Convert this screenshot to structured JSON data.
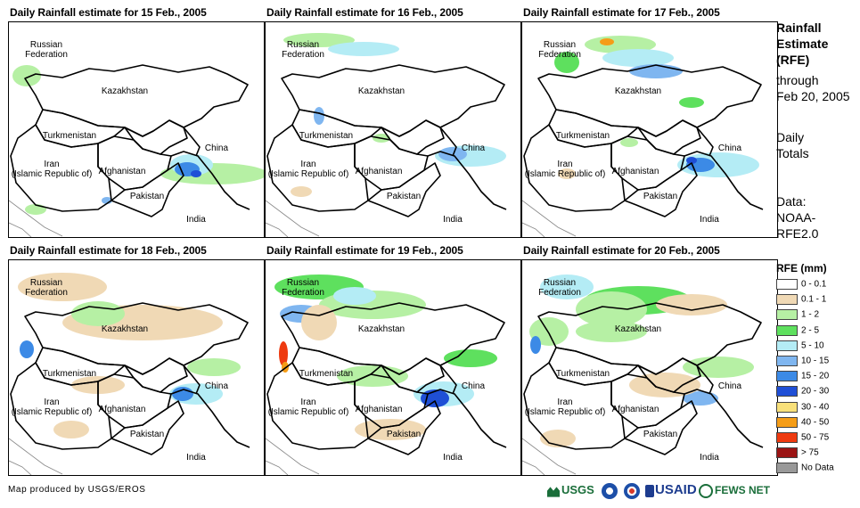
{
  "panels": [
    {
      "title": "Daily Rainfall estimate for 15 Feb., 2005"
    },
    {
      "title": "Daily Rainfall estimate for 16 Feb., 2005"
    },
    {
      "title": "Daily Rainfall estimate for 17 Feb., 2005"
    },
    {
      "title": "Daily Rainfall estimate for 18 Feb., 2005"
    },
    {
      "title": "Daily Rainfall estimate for 19 Feb., 2005"
    },
    {
      "title": "Daily Rainfall estimate for 20 Feb., 2005"
    }
  ],
  "countries": {
    "russia": "Russian\nFederation",
    "kazakhstan": "Kazakhstan",
    "turkmenistan": "Turkmenistan",
    "iran": "Iran\n(Islamic Republic of)",
    "afghanistan": "Afghanistan",
    "pakistan": "Pakistan",
    "china": "China",
    "india": "India"
  },
  "side": {
    "title_l1": "Rainfall",
    "title_l2": "Estimate",
    "title_l3": "(RFE)",
    "through": "through",
    "date": "Feb 20, 2005",
    "daily": "Daily",
    "totals": "Totals",
    "data_l1": "Data:",
    "data_l2": "NOAA-",
    "data_l3": "RFE2.0"
  },
  "legend": {
    "title": "RFE (mm)",
    "items": [
      {
        "label": "0 - 0.1",
        "color": "#ffffff"
      },
      {
        "label": "0.1 - 1",
        "color": "#f0d9b5"
      },
      {
        "label": "1 - 2",
        "color": "#b6f0a4"
      },
      {
        "label": "2 - 5",
        "color": "#5ee05e"
      },
      {
        "label": "5 - 10",
        "color": "#b4ecf5"
      },
      {
        "label": "10 - 15",
        "color": "#7fb6f0"
      },
      {
        "label": "15 - 20",
        "color": "#3c8ae6"
      },
      {
        "label": "20 - 30",
        "color": "#1f4fd6"
      },
      {
        "label": "30 - 40",
        "color": "#f8e07a"
      },
      {
        "label": "40 - 50",
        "color": "#f59d17"
      },
      {
        "label": "50 - 75",
        "color": "#ee3a10"
      },
      {
        "label": "> 75",
        "color": "#9b1414"
      },
      {
        "label": "No Data",
        "color": "#999999"
      }
    ]
  },
  "footer": {
    "credit": "Map produced by USGS/EROS",
    "usgs": "USGS",
    "usaid": "USAID",
    "fewsnet": "FEWS NET"
  }
}
